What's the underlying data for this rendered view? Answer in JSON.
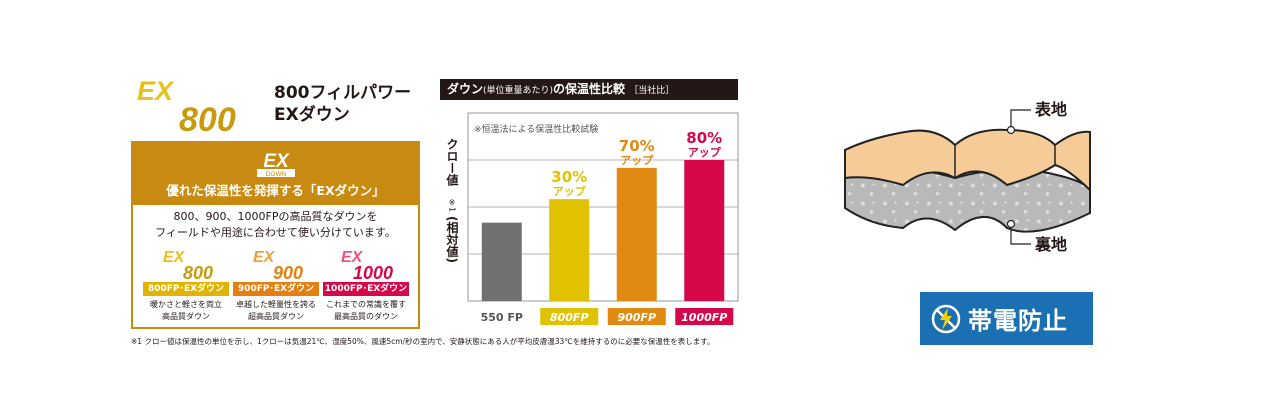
{
  "product": {
    "logo_top": "EX",
    "logo_bottom": "800",
    "name_line1": "800フィルパワー",
    "name_line2": "EXダウン"
  },
  "panel": {
    "badge_top": "EX",
    "badge_bottom": "DOWN",
    "title": "優れた保温性を発揮する「EXダウン」",
    "desc_line1": "800、900、1000FPの高品質なダウンを",
    "desc_line2": "フィールドや用途に合わせて使い分けています。",
    "grades": [
      {
        "logo_top": "EX",
        "logo_bottom": "800",
        "label": "800FP･EXダウン",
        "desc1": "暖かさと軽さを両立",
        "desc2": "高品質ダウン",
        "color": "#e0b400"
      },
      {
        "logo_top": "EX",
        "logo_bottom": "900",
        "label": "900FP･EXダウン",
        "desc1": "卓越した軽量性を誇る",
        "desc2": "超高品質ダウン",
        "color": "#e57f0f"
      },
      {
        "logo_top": "EX",
        "logo_bottom": "1000",
        "label": "1000FP･EXダウン",
        "desc1": "これまでの常識を覆す",
        "desc2": "最高品質のダウン",
        "color": "#d6084a"
      }
    ]
  },
  "footnote": "※1 クロー値は保温性の単位を示し、1クローは気温21℃、湿度50%、風速5cm/秒の室内で、安静状態にある人が平均皮膚温33℃を維持するのに必要な保温性を表します。",
  "chart_title": {
    "main": "ダウン",
    "paren": "(単位重量あたり)",
    "rest": "の保温性比較",
    "note": "［当社比］"
  },
  "chart_data": {
    "type": "bar",
    "categories": [
      "550 FP",
      "800FP",
      "900FP",
      "1000FP"
    ],
    "values": [
      100,
      130,
      170,
      180
    ],
    "colors": [
      "#707070",
      "#e0c200",
      "#e08a12",
      "#d6084a"
    ],
    "annotations": [
      {
        "index": 1,
        "percent": "30%",
        "word": "アップ"
      },
      {
        "index": 2,
        "percent": "70%",
        "word": "アップ"
      },
      {
        "index": 3,
        "percent": "80%",
        "word": "アップ"
      }
    ],
    "note": "※恒温法による保温性比較試験",
    "ylabel": "クロー値",
    "ylabel_mark": "※1",
    "ylabel_paren": "(相対値)",
    "ylim": [
      0,
      240
    ],
    "grid": true
  },
  "fabric": {
    "outer_label": "表地",
    "inner_label": "裏地",
    "outer_color": "#f5cc98",
    "inner_color": "#b9b9b9"
  },
  "antistatic": {
    "label": "帯電防止",
    "color": "#1b6fb3"
  }
}
